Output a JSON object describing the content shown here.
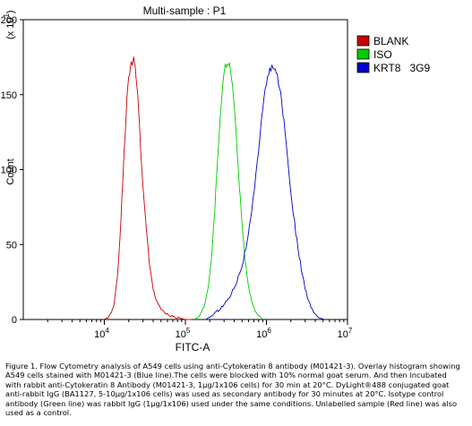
{
  "chart_data": {
    "type": "line",
    "title": "Multi-sample : P1",
    "xlabel": "FITC-A",
    "ylabel": "Count",
    "y_multiplier": "(x 10",
    "y_multiplier_exp": "1",
    "y_multiplier_close": ")",
    "xscale": "log",
    "xlim": [
      1000,
      10000000
    ],
    "ylim": [
      0,
      200
    ],
    "xticks": [
      {
        "value": 10000,
        "base": "10",
        "exp": "4"
      },
      {
        "value": 100000,
        "base": "10",
        "exp": "5"
      },
      {
        "value": 1000000,
        "base": "10",
        "exp": "6"
      },
      {
        "value": 10000000,
        "base": "10",
        "exp": "7"
      }
    ],
    "yticks": [
      0,
      50,
      100,
      150,
      200
    ],
    "grid": false,
    "legend": "right",
    "series": [
      {
        "name": "BLANK",
        "color": "#cc0000",
        "x": [
          10000,
          11500,
          13000,
          14500,
          16000,
          17500,
          19000,
          20000,
          21000,
          22000,
          23000,
          24000,
          25000,
          26500,
          28000,
          30000,
          33000,
          36000,
          40000,
          45000,
          50000,
          58000,
          70000,
          85000,
          100000,
          120000
        ],
        "y": [
          0,
          2,
          8,
          28,
          65,
          110,
          148,
          160,
          168,
          172,
          175,
          170,
          158,
          140,
          115,
          88,
          60,
          38,
          20,
          11,
          7,
          4,
          2,
          1,
          0,
          0
        ]
      },
      {
        "name": "ISO",
        "color": "#00cc00",
        "x": [
          130000,
          150000,
          170000,
          190000,
          210000,
          230000,
          250000,
          270000,
          290000,
          310000,
          330000,
          350000,
          370000,
          390000,
          420000,
          450000,
          490000,
          540000,
          600000,
          680000,
          780000,
          900000
        ],
        "y": [
          0,
          3,
          8,
          20,
          42,
          72,
          108,
          138,
          158,
          168,
          172,
          170,
          162,
          150,
          128,
          100,
          70,
          42,
          22,
          9,
          3,
          0
        ]
      },
      {
        "name": "KRT8   3G9",
        "color": "#0000cc",
        "x": [
          180000,
          230000,
          290000,
          350000,
          420000,
          500000,
          580000,
          660000,
          740000,
          820000,
          900000,
          1000000,
          1100000,
          1200000,
          1320000,
          1450000,
          1600000,
          1800000,
          2000000,
          2300000,
          2700000,
          3200000,
          3800000,
          4500000,
          5200000
        ],
        "y": [
          0,
          4,
          9,
          15,
          24,
          36,
          52,
          72,
          96,
          120,
          142,
          158,
          166,
          168,
          165,
          156,
          138,
          112,
          85,
          58,
          33,
          14,
          5,
          1,
          0
        ]
      }
    ]
  },
  "caption": {
    "text": "Figure 1. Flow Cytometry analysis of A549 cells using anti-Cytokeratin 8 antibody (M01421-3).  Overlay histogram showing A549 cells stained with M01421-3 (Blue line).The cells were blocked with 10% normal goat serum.  And then incubated with rabbit anti-Cytokeratin 8 Antibody (M01421-3, 1µg/1x106 cells) for 30 min at 20°C. DyLight®488 conjugated goat anti-rabbit IgG (BA1127, 5-10µg/1x106 cells) was used as secondary antibody for 30 minutes at 20°C. Isotype control antibody (Green line) was rabbit IgG (1µg/1x106) used under the same conditions. Unlabelled sample (Red line) was also used as a control."
  }
}
